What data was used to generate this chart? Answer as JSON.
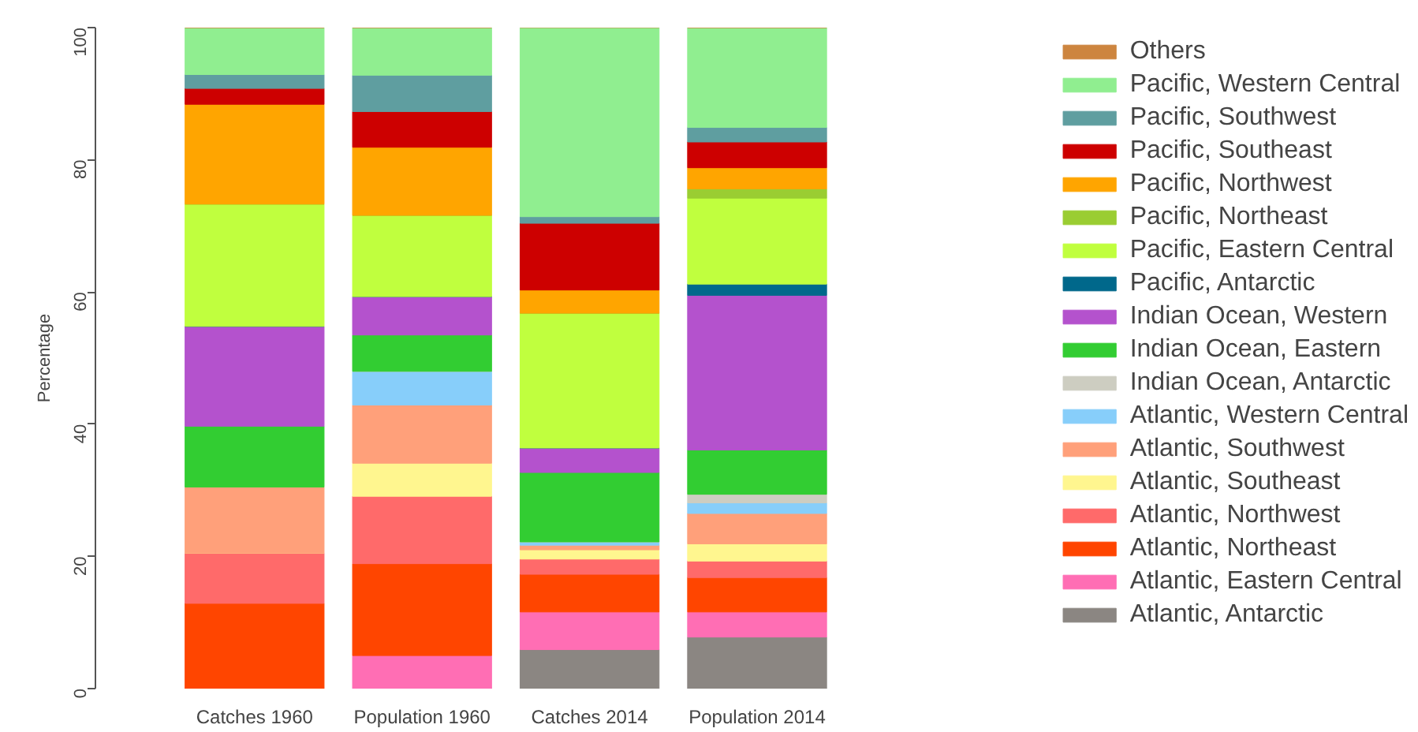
{
  "chart_data": {
    "type": "bar",
    "stacked": true,
    "ylabel": "Percentage",
    "categories": [
      "Catches 1960",
      "Population 1960",
      "Catches 2014",
      "Population 2014"
    ],
    "ylim": [
      0,
      100
    ],
    "yticks": [
      0,
      20,
      40,
      60,
      80,
      100
    ],
    "grid": false,
    "legend": "right",
    "series": [
      {
        "name": "Atlantic, Antarctic",
        "color": "#8b8682",
        "values": [
          0,
          0,
          5.9,
          7.8
        ]
      },
      {
        "name": "Atlantic, Eastern Central",
        "color": "#ff6eb4",
        "values": [
          0,
          5.0,
          5.7,
          3.8
        ]
      },
      {
        "name": "Atlantic, Northeast",
        "color": "#ff4500",
        "values": [
          12.9,
          13.9,
          5.7,
          5.2
        ]
      },
      {
        "name": "Atlantic, Northwest",
        "color": "#ff6a6a",
        "values": [
          7.6,
          10.2,
          2.3,
          2.5
        ]
      },
      {
        "name": "Atlantic, Southeast",
        "color": "#fff68f",
        "values": [
          0,
          5.0,
          1.4,
          2.6
        ]
      },
      {
        "name": "Atlantic, Southwest",
        "color": "#ffa07a",
        "values": [
          10.0,
          8.8,
          0.7,
          4.6
        ]
      },
      {
        "name": "Atlantic, Western Central",
        "color": "#87cefa",
        "values": [
          0,
          5.1,
          0.5,
          1.6
        ]
      },
      {
        "name": "Indian Ocean, Antarctic",
        "color": "#cdcdc1",
        "values": [
          0,
          0,
          0,
          1.3
        ]
      },
      {
        "name": "Indian Ocean, Eastern",
        "color": "#32cd32",
        "values": [
          9.2,
          5.5,
          10.5,
          6.7
        ]
      },
      {
        "name": "Indian Ocean, Western",
        "color": "#b452cd",
        "values": [
          15.1,
          5.8,
          3.7,
          23.4
        ]
      },
      {
        "name": "Pacific, Antarctic",
        "color": "#00688b",
        "values": [
          0,
          0,
          0,
          1.7
        ]
      },
      {
        "name": "Pacific, Eastern Central",
        "color": "#c0ff3e",
        "values": [
          18.5,
          12.3,
          20.4,
          13.0
        ]
      },
      {
        "name": "Pacific, Northeast",
        "color": "#9acd32",
        "values": [
          0,
          0,
          0,
          1.4
        ]
      },
      {
        "name": "Pacific, Northwest",
        "color": "#ffa500",
        "values": [
          15.1,
          10.3,
          3.5,
          3.2
        ]
      },
      {
        "name": "Pacific, Southeast",
        "color": "#cd0000",
        "values": [
          2.4,
          5.4,
          10.1,
          3.9
        ]
      },
      {
        "name": "Pacific, Southwest",
        "color": "#5f9ea0",
        "values": [
          2.1,
          5.5,
          1.0,
          2.2
        ]
      },
      {
        "name": "Pacific, Western Central",
        "color": "#90ee90",
        "values": [
          7.1,
          7.2,
          28.7,
          15.1
        ]
      },
      {
        "name": "Others",
        "color": "#cd853f",
        "values": [
          0,
          0,
          0,
          0
        ]
      }
    ]
  }
}
